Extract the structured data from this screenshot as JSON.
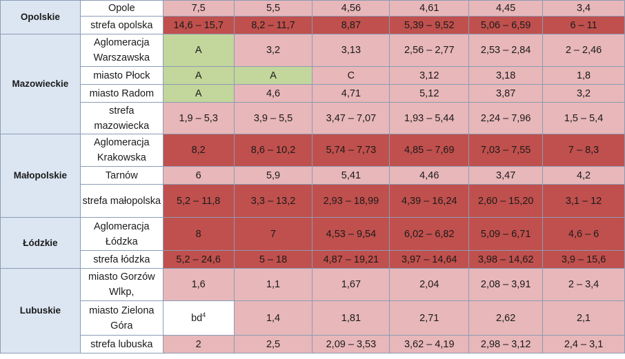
{
  "regions": [
    {
      "name": "Opolskie",
      "rows": [
        {
          "zone": "Opole",
          "cells": [
            {
              "v": "7,5",
              "c": "l"
            },
            {
              "v": "5,5",
              "c": "l"
            },
            {
              "v": "4,56",
              "c": "l"
            },
            {
              "v": "4,61",
              "c": "l"
            },
            {
              "v": "4,45",
              "c": "l"
            },
            {
              "v": "3,4",
              "c": "l"
            }
          ]
        },
        {
          "zone": "strefa opolska",
          "cells": [
            {
              "v": "14,6 – 15,7",
              "c": "d"
            },
            {
              "v": "8,2 – 11,7",
              "c": "d"
            },
            {
              "v": "8,87",
              "c": "d"
            },
            {
              "v": "5,39 – 9,52",
              "c": "d"
            },
            {
              "v": "5,06 – 6,59",
              "c": "d"
            },
            {
              "v": "6 – 11",
              "c": "d"
            }
          ]
        }
      ]
    },
    {
      "name": "Mazowieckie",
      "rows": [
        {
          "zone": "Aglomeracja Warszawska",
          "cells": [
            {
              "v": "A",
              "c": "g"
            },
            {
              "v": "3,2",
              "c": "l"
            },
            {
              "v": "3,13",
              "c": "l"
            },
            {
              "v": "2,56 – 2,77",
              "c": "l"
            },
            {
              "v": "2,53 – 2,84",
              "c": "l"
            },
            {
              "v": "2 – 2,46",
              "c": "l"
            }
          ]
        },
        {
          "zone": "miasto Płock",
          "cells": [
            {
              "v": "A",
              "c": "g"
            },
            {
              "v": "A",
              "c": "g"
            },
            {
              "v": "C",
              "c": "l"
            },
            {
              "v": "3,12",
              "c": "l"
            },
            {
              "v": "3,18",
              "c": "l"
            },
            {
              "v": "1,8",
              "c": "l"
            }
          ]
        },
        {
          "zone": "miasto Radom",
          "cells": [
            {
              "v": "A",
              "c": "g"
            },
            {
              "v": "4,6",
              "c": "l"
            },
            {
              "v": "4,71",
              "c": "l"
            },
            {
              "v": "5,12",
              "c": "l"
            },
            {
              "v": "3,87",
              "c": "l"
            },
            {
              "v": "3,2",
              "c": "l"
            }
          ]
        },
        {
          "zone": "strefa mazowiecka",
          "cells": [
            {
              "v": "1,9 – 5,3",
              "c": "l"
            },
            {
              "v": "3,9 – 5,5",
              "c": "l"
            },
            {
              "v": "3,47 – 7,07",
              "c": "l"
            },
            {
              "v": "1,93 – 5,44",
              "c": "l"
            },
            {
              "v": "2,24 – 7,96",
              "c": "l"
            },
            {
              "v": "1,5 – 5,4",
              "c": "l"
            }
          ]
        }
      ]
    },
    {
      "name": "Małopolskie",
      "rows": [
        {
          "zone": "Aglomeracja Krakowska",
          "cells": [
            {
              "v": "8,2",
              "c": "d"
            },
            {
              "v": "8,6 – 10,2",
              "c": "d"
            },
            {
              "v": "5,74 – 7,73",
              "c": "d"
            },
            {
              "v": "4,85 – 7,69",
              "c": "d"
            },
            {
              "v": "7,03 – 7,55",
              "c": "d"
            },
            {
              "v": "7 – 8,3",
              "c": "d"
            }
          ]
        },
        {
          "zone": "Tarnów",
          "cells": [
            {
              "v": "6",
              "c": "l"
            },
            {
              "v": "5,9",
              "c": "l"
            },
            {
              "v": "5,41",
              "c": "l"
            },
            {
              "v": "4,46",
              "c": "l"
            },
            {
              "v": "3,47",
              "c": "l"
            },
            {
              "v": "4,2",
              "c": "l"
            }
          ]
        },
        {
          "zone": "strefa małopolska",
          "cells": [
            {
              "v": "5,2 – 11,8",
              "c": "d"
            },
            {
              "v": "3,3 – 13,2",
              "c": "d"
            },
            {
              "v": "2,93 – 18,99",
              "c": "d"
            },
            {
              "v": "4,39 – 16,24",
              "c": "d"
            },
            {
              "v": "2,60 – 15,20",
              "c": "d"
            },
            {
              "v": "3,1 – 12",
              "c": "d"
            }
          ]
        }
      ]
    },
    {
      "name": "Łódzkie",
      "rows": [
        {
          "zone": "Aglomeracja Łódzka",
          "cells": [
            {
              "v": "8",
              "c": "d"
            },
            {
              "v": "7",
              "c": "d"
            },
            {
              "v": "4,53 – 9,54",
              "c": "d"
            },
            {
              "v": "6,02 – 6,82",
              "c": "d"
            },
            {
              "v": "5,09 – 6,71",
              "c": "d"
            },
            {
              "v": "4,6 – 6",
              "c": "d"
            }
          ]
        },
        {
          "zone": "strefa łódzka",
          "cells": [
            {
              "v": "5,2 – 24,6",
              "c": "d"
            },
            {
              "v": "5 – 18",
              "c": "d"
            },
            {
              "v": "4,87 – 19,21",
              "c": "d"
            },
            {
              "v": "3,97 – 14,64",
              "c": "d"
            },
            {
              "v": "3,98 – 14,62",
              "c": "d"
            },
            {
              "v": "3,9 – 15,6",
              "c": "d"
            }
          ]
        }
      ]
    },
    {
      "name": "Lubuskie",
      "rows": [
        {
          "zone": "miasto Gorzów Wlkp,",
          "cells": [
            {
              "v": "1,6",
              "c": "l"
            },
            {
              "v": "1,1",
              "c": "l"
            },
            {
              "v": "1,67",
              "c": "l"
            },
            {
              "v": "2,04",
              "c": "l"
            },
            {
              "v": "2,08 – 3,91",
              "c": "l"
            },
            {
              "v": "2 – 3,4",
              "c": "l"
            }
          ]
        },
        {
          "zone": "miasto Zielona Góra",
          "cells": [
            {
              "v": "bd",
              "sup": "4",
              "c": "w"
            },
            {
              "v": "1,4",
              "c": "l"
            },
            {
              "v": "1,81",
              "c": "l"
            },
            {
              "v": "2,71",
              "c": "l"
            },
            {
              "v": "2,62",
              "c": "l"
            },
            {
              "v": "2,1",
              "c": "l"
            }
          ]
        },
        {
          "zone": "strefa lubuska",
          "cells": [
            {
              "v": "2",
              "c": "l"
            },
            {
              "v": "2,5",
              "c": "l"
            },
            {
              "v": "2,09 – 3,53",
              "c": "l"
            },
            {
              "v": "3,62 – 4,19",
              "c": "l"
            },
            {
              "v": "2,98 – 3,12",
              "c": "l"
            },
            {
              "v": "2,4 – 3,1",
              "c": "l"
            }
          ]
        }
      ]
    }
  ]
}
